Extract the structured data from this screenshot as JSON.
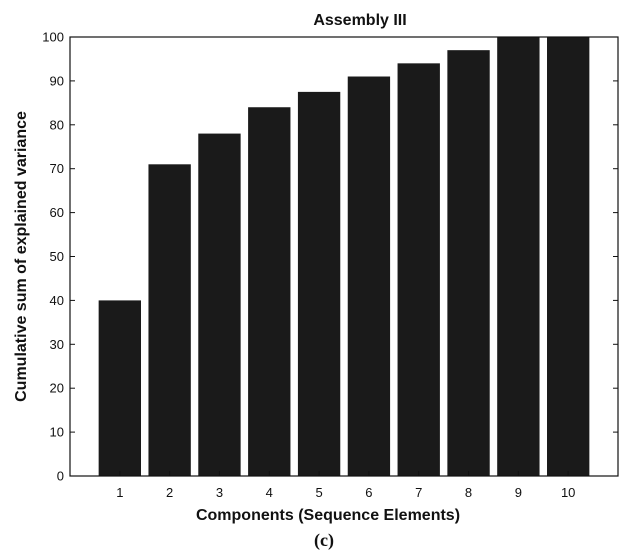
{
  "chart_data": {
    "type": "bar",
    "title": "Assembly III",
    "xlabel": "Components (Sequence Elements)",
    "ylabel": "Cumulative sum of explained variance",
    "categories": [
      "1",
      "2",
      "3",
      "4",
      "5",
      "6",
      "7",
      "8",
      "9",
      "10"
    ],
    "values": [
      40,
      71,
      78,
      84,
      87.5,
      91,
      94,
      97,
      100,
      100
    ],
    "xlim": [
      0,
      11
    ],
    "ylim": [
      0,
      100
    ],
    "yticks": [
      0,
      10,
      20,
      30,
      40,
      50,
      60,
      70,
      80,
      90,
      100
    ],
    "bar_color": "#1a1a1a",
    "grid": false
  },
  "panel_label": "(c)"
}
